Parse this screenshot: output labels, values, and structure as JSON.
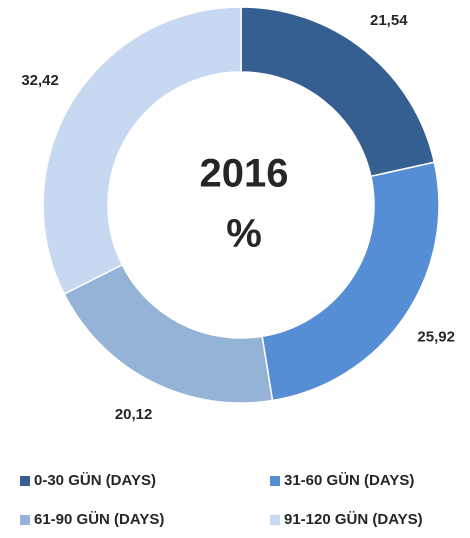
{
  "chart_data": {
    "type": "donut",
    "title": "2016",
    "subtitle": "%",
    "categories": [
      "0-30 GÜN (DAYS)",
      "31-60 GÜN (DAYS)",
      "61-90 GÜN (DAYS)",
      "91-120 GÜN (DAYS)"
    ],
    "values": [
      21.54,
      25.92,
      20.12,
      32.42
    ],
    "value_labels": [
      "21,54",
      "25,92",
      "20,12",
      "32,42"
    ],
    "colors": [
      "#365f91",
      "#558ed5",
      "#95b3d7",
      "#c6d9f1"
    ],
    "legend": "bottom"
  }
}
